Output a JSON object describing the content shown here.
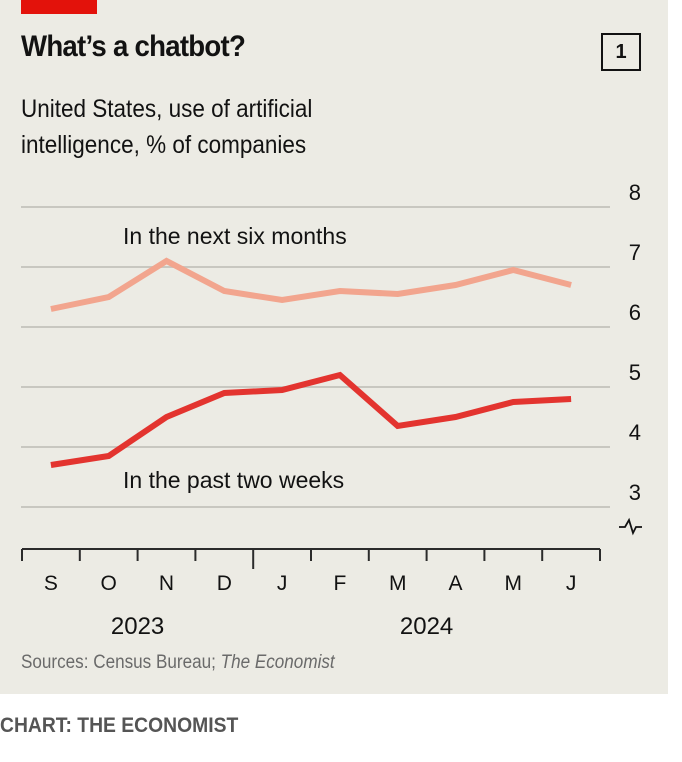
{
  "header": {
    "title": "What’s a chatbot?",
    "badge": "1",
    "subtitle_line1": "United States, use of artificial",
    "subtitle_line2": "intelligence, % of companies"
  },
  "footer": {
    "source_prefix": "Sources: Census Bureau; ",
    "source_italic": "The Economist",
    "credit": "CHART: THE ECONOMIST"
  },
  "colors": {
    "brand_red": "#e3120b",
    "past_two_weeks_line": "#e3342f",
    "next_six_months_line": "#f2a58e",
    "background": "#ecebe4",
    "gridline": "#c8c7c0",
    "text": "#121212"
  },
  "chart_data": {
    "type": "line",
    "title": "What’s a chatbot?",
    "subtitle": "United States, use of artificial intelligence, % of companies",
    "xlabel": "",
    "ylabel": "% of companies",
    "x": [
      "Sep 2023",
      "Oct 2023",
      "Nov 2023",
      "Dec 2023",
      "Jan 2024",
      "Feb 2024",
      "Mar 2024",
      "Apr 2024",
      "May 2024",
      "Jun 2024"
    ],
    "x_tick_labels": [
      "S",
      "O",
      "N",
      "D",
      "J",
      "F",
      "M",
      "A",
      "M",
      "J"
    ],
    "year_labels": [
      {
        "label": "2023",
        "month_index": 1.5
      },
      {
        "label": "2024",
        "month_index": 6.5
      }
    ],
    "ylim": [
      2.7,
      8
    ],
    "y_ticks": [
      3,
      4,
      5,
      6,
      7,
      8
    ],
    "y_axis_break": true,
    "y_axis_position": "right",
    "grid": true,
    "series": [
      {
        "name": "In the next six months",
        "color": "#f2a58e",
        "values": [
          6.3,
          6.5,
          7.1,
          6.6,
          6.45,
          6.6,
          6.55,
          6.7,
          6.95,
          6.7
        ]
      },
      {
        "name": "In the past two weeks",
        "color": "#e3342f",
        "values": [
          3.7,
          3.85,
          4.5,
          4.9,
          4.95,
          5.2,
          4.35,
          4.5,
          4.75,
          4.8
        ]
      }
    ],
    "annotations": [
      "In the next six months",
      "In the past two weeks"
    ],
    "source": "Sources: Census Bureau; The Economist"
  }
}
